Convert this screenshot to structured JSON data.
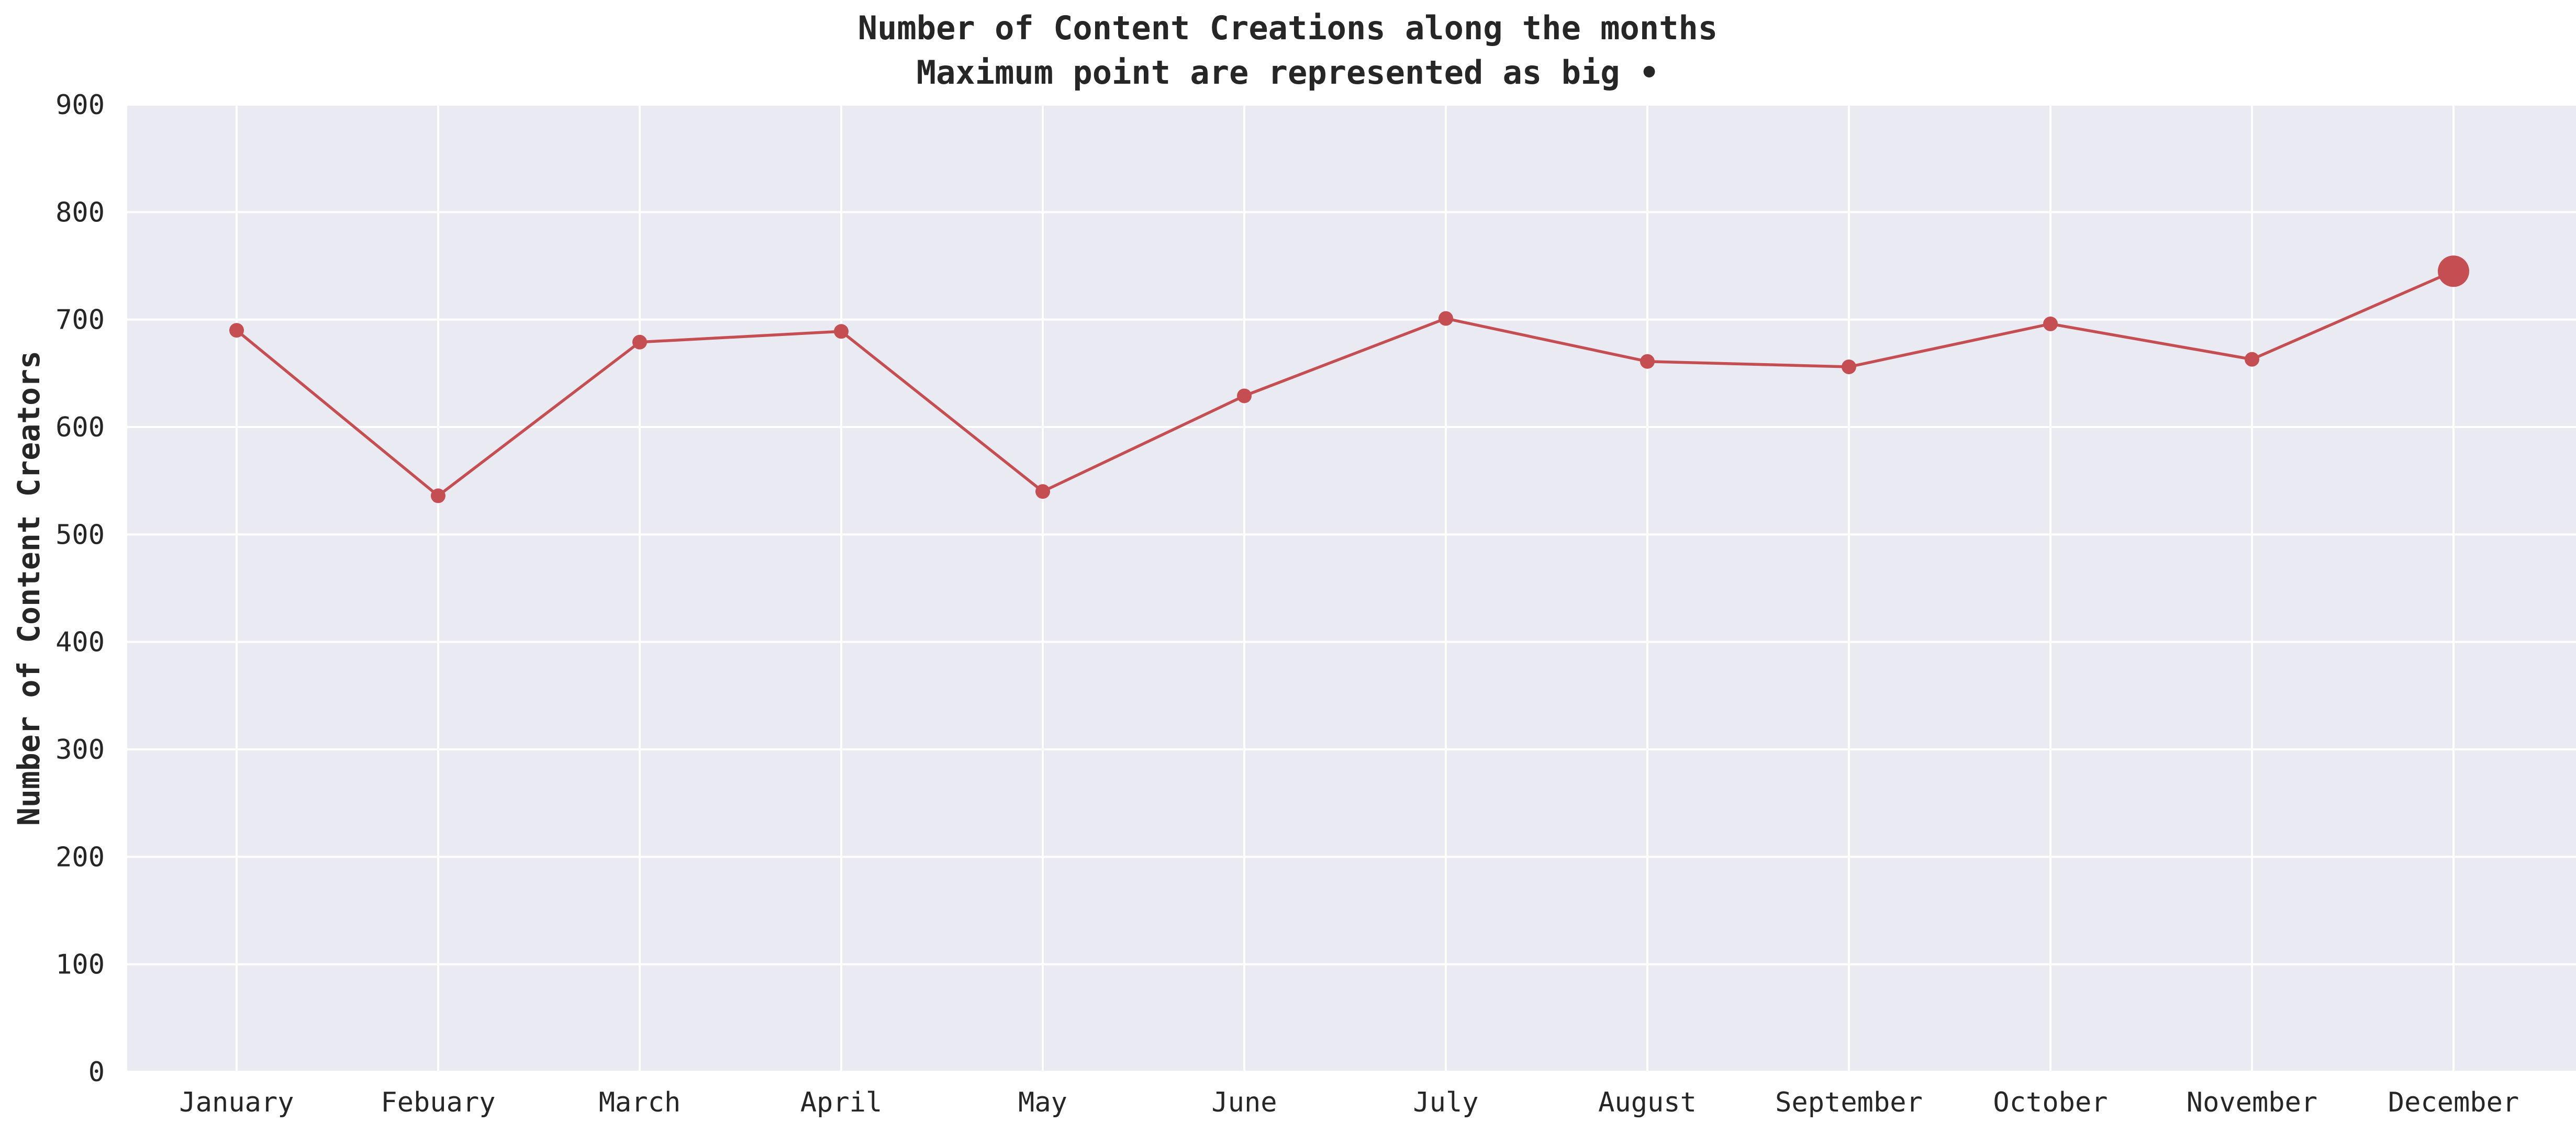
{
  "chart_data": {
    "type": "line",
    "title": "Number of Content Creations along the months",
    "subtitle": "Maximum point are represented as big •",
    "xlabel": "",
    "ylabel": "Number of Content Creators",
    "categories": [
      "January",
      "Febuary",
      "March",
      "April",
      "May",
      "June",
      "July",
      "August",
      "September",
      "October",
      "November",
      "December"
    ],
    "series": [
      {
        "values": [
          690,
          536,
          679,
          689,
          540,
          629,
          701,
          661,
          656,
          696,
          663,
          745
        ],
        "color": "#c44e52"
      }
    ],
    "ylim": [
      0,
      900
    ],
    "yticks": [
      "0",
      "100",
      "200",
      "300",
      "400",
      "500",
      "600",
      "700",
      "800",
      "900"
    ],
    "max_point": {
      "category": "December",
      "value": 745
    },
    "grid": true,
    "legend": "none",
    "colors": {
      "plot_background": "#eaeaf2",
      "grid": "#ffffff",
      "line": "#c44e52",
      "text": "#262626"
    }
  }
}
